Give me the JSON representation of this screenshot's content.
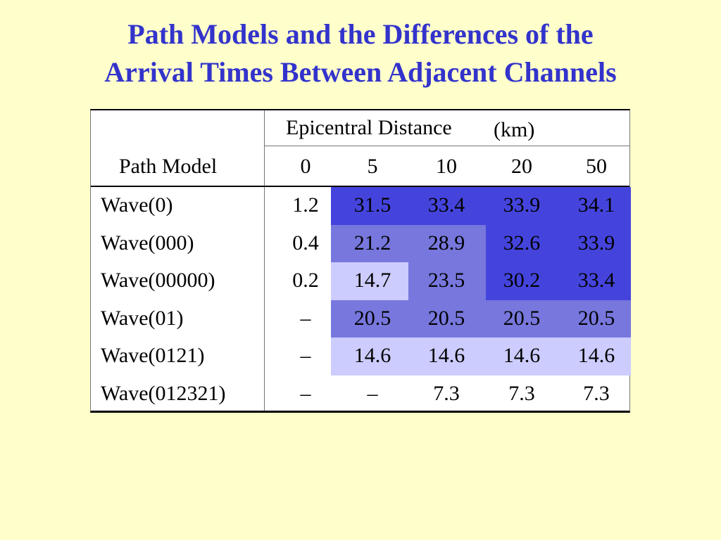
{
  "title": {
    "line1": "Path Models and the Differences of the",
    "line2": "Arrival Times Between Adjacent Channels"
  },
  "table": {
    "group_header": "Epicentral Distance",
    "unit": "(km)",
    "row_header": "Path Model",
    "distances": [
      "0",
      "5",
      "10",
      "20",
      "50"
    ],
    "rows": [
      {
        "model": "Wave(0)",
        "values": [
          "1.2",
          "31.5",
          "33.4",
          "33.9",
          "34.1"
        ]
      },
      {
        "model": "Wave(000)",
        "values": [
          "0.4",
          "21.2",
          "28.9",
          "32.6",
          "33.9"
        ]
      },
      {
        "model": "Wave(00000)",
        "values": [
          "0.2",
          "14.7",
          "23.5",
          "30.2",
          "33.4"
        ]
      },
      {
        "model": "Wave(01)",
        "values": [
          "–",
          "20.5",
          "20.5",
          "20.5",
          "20.5"
        ]
      },
      {
        "model": "Wave(0121)",
        "values": [
          "–",
          "14.6",
          "14.6",
          "14.6",
          "14.6"
        ]
      },
      {
        "model": "Wave(012321)",
        "values": [
          "–",
          "–",
          "7.3",
          "7.3",
          "7.3"
        ]
      }
    ]
  },
  "colors": {
    "background": "#ffffcc",
    "title": "#3333cc",
    "shade_dark": "#4444dd",
    "shade_mid": "#7777dd",
    "shade_light": "#ccccff"
  }
}
